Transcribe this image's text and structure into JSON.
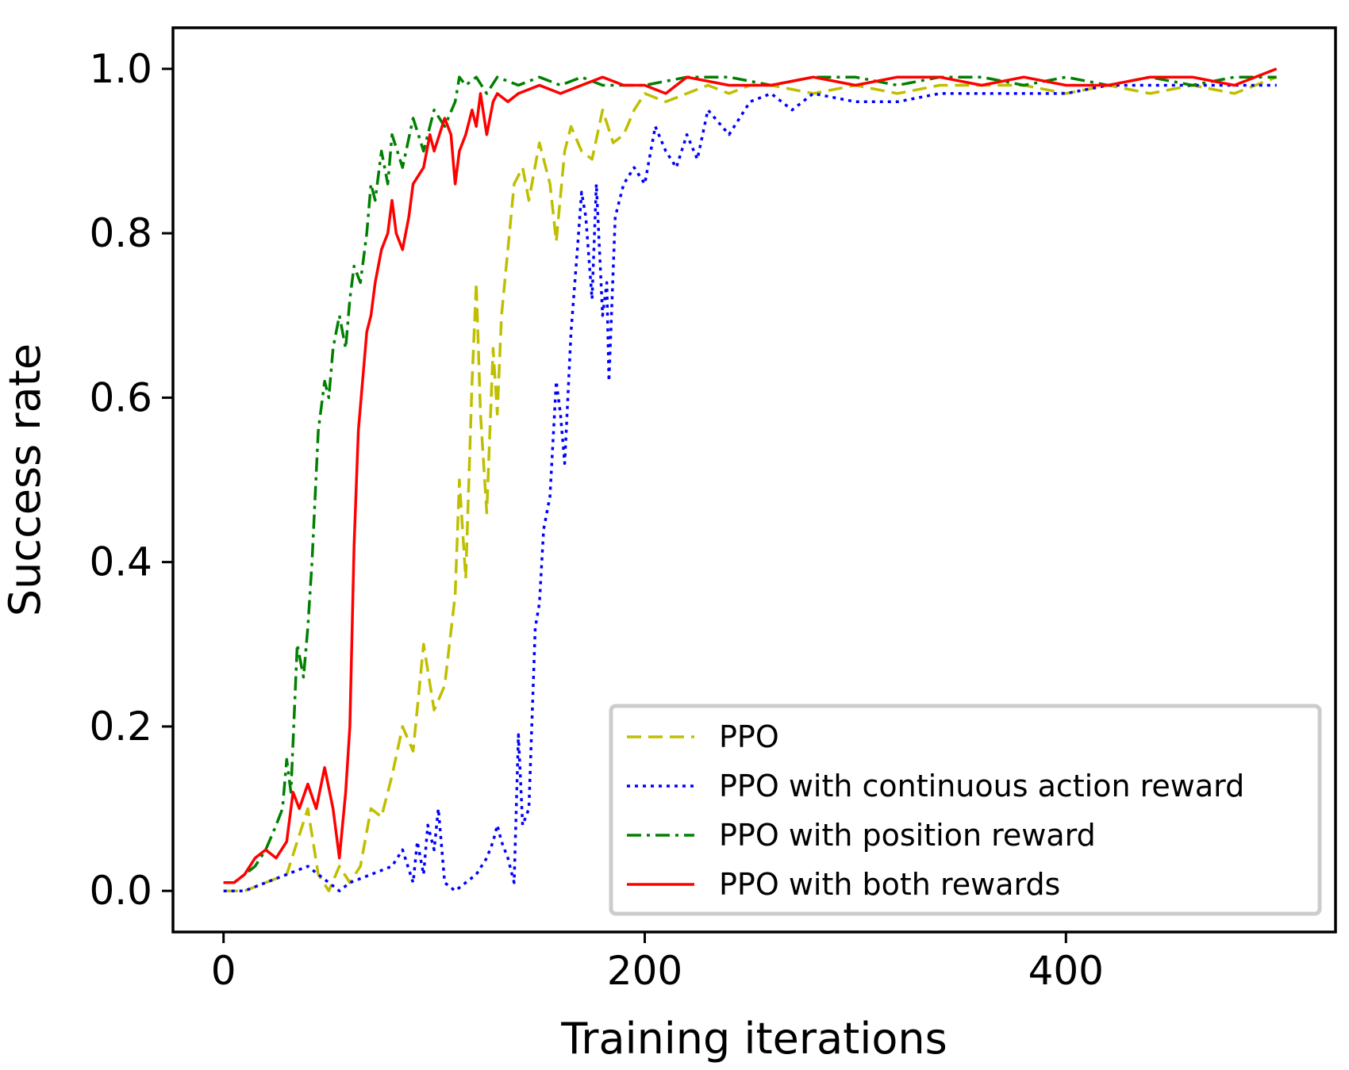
{
  "chart_data": {
    "type": "line",
    "title": "",
    "xlabel": "Training iterations",
    "ylabel": "Success rate",
    "xlim": [
      -24,
      528
    ],
    "ylim": [
      -0.05,
      1.05
    ],
    "xticks": [
      0,
      200,
      400
    ],
    "xtick_labels": [
      "0",
      "200",
      "400"
    ],
    "yticks": [
      0.0,
      0.2,
      0.4,
      0.6,
      0.8,
      1.0
    ],
    "ytick_labels": [
      "0.0",
      "0.2",
      "0.4",
      "0.6",
      "0.8",
      "1.0"
    ],
    "grid": false,
    "legend_position": "lower-right",
    "series": [
      {
        "name": "PPO",
        "color": "#bfbf00",
        "style": "dashed",
        "points": [
          [
            0,
            0.0
          ],
          [
            10,
            0.0
          ],
          [
            20,
            0.01
          ],
          [
            30,
            0.02
          ],
          [
            35,
            0.06
          ],
          [
            40,
            0.1
          ],
          [
            45,
            0.02
          ],
          [
            50,
            0.0
          ],
          [
            55,
            0.03
          ],
          [
            60,
            0.01
          ],
          [
            65,
            0.03
          ],
          [
            70,
            0.1
          ],
          [
            75,
            0.09
          ],
          [
            80,
            0.14
          ],
          [
            85,
            0.2
          ],
          [
            90,
            0.17
          ],
          [
            95,
            0.3
          ],
          [
            100,
            0.22
          ],
          [
            105,
            0.25
          ],
          [
            110,
            0.36
          ],
          [
            112,
            0.5
          ],
          [
            115,
            0.38
          ],
          [
            118,
            0.62
          ],
          [
            120,
            0.74
          ],
          [
            122,
            0.58
          ],
          [
            125,
            0.46
          ],
          [
            128,
            0.66
          ],
          [
            130,
            0.58
          ],
          [
            132,
            0.7
          ],
          [
            135,
            0.78
          ],
          [
            138,
            0.86
          ],
          [
            142,
            0.88
          ],
          [
            145,
            0.84
          ],
          [
            150,
            0.91
          ],
          [
            155,
            0.86
          ],
          [
            158,
            0.79
          ],
          [
            162,
            0.9
          ],
          [
            165,
            0.93
          ],
          [
            170,
            0.9
          ],
          [
            175,
            0.89
          ],
          [
            180,
            0.95
          ],
          [
            185,
            0.91
          ],
          [
            190,
            0.92
          ],
          [
            195,
            0.95
          ],
          [
            200,
            0.97
          ],
          [
            210,
            0.96
          ],
          [
            220,
            0.97
          ],
          [
            230,
            0.98
          ],
          [
            240,
            0.97
          ],
          [
            250,
            0.98
          ],
          [
            260,
            0.98
          ],
          [
            280,
            0.97
          ],
          [
            300,
            0.98
          ],
          [
            320,
            0.97
          ],
          [
            340,
            0.98
          ],
          [
            360,
            0.98
          ],
          [
            380,
            0.98
          ],
          [
            400,
            0.97
          ],
          [
            420,
            0.98
          ],
          [
            440,
            0.97
          ],
          [
            460,
            0.98
          ],
          [
            480,
            0.97
          ],
          [
            490,
            0.98
          ],
          [
            500,
            0.99
          ]
        ]
      },
      {
        "name": "PPO with continuous action reward",
        "color": "#0000ff",
        "style": "dotted",
        "points": [
          [
            0,
            0.0
          ],
          [
            10,
            0.0
          ],
          [
            20,
            0.01
          ],
          [
            30,
            0.02
          ],
          [
            40,
            0.03
          ],
          [
            45,
            0.02
          ],
          [
            50,
            0.01
          ],
          [
            55,
            0.0
          ],
          [
            60,
            0.01
          ],
          [
            70,
            0.02
          ],
          [
            80,
            0.03
          ],
          [
            85,
            0.05
          ],
          [
            90,
            0.01
          ],
          [
            92,
            0.06
          ],
          [
            95,
            0.02
          ],
          [
            97,
            0.08
          ],
          [
            100,
            0.05
          ],
          [
            102,
            0.1
          ],
          [
            105,
            0.01
          ],
          [
            110,
            0.0
          ],
          [
            115,
            0.01
          ],
          [
            120,
            0.02
          ],
          [
            125,
            0.04
          ],
          [
            128,
            0.06
          ],
          [
            130,
            0.08
          ],
          [
            132,
            0.06
          ],
          [
            135,
            0.04
          ],
          [
            138,
            0.01
          ],
          [
            140,
            0.19
          ],
          [
            142,
            0.08
          ],
          [
            145,
            0.1
          ],
          [
            148,
            0.32
          ],
          [
            150,
            0.35
          ],
          [
            152,
            0.44
          ],
          [
            155,
            0.48
          ],
          [
            158,
            0.62
          ],
          [
            160,
            0.58
          ],
          [
            162,
            0.52
          ],
          [
            165,
            0.68
          ],
          [
            168,
            0.78
          ],
          [
            170,
            0.85
          ],
          [
            172,
            0.82
          ],
          [
            175,
            0.72
          ],
          [
            177,
            0.86
          ],
          [
            180,
            0.7
          ],
          [
            182,
            0.74
          ],
          [
            183,
            0.62
          ],
          [
            186,
            0.82
          ],
          [
            190,
            0.86
          ],
          [
            195,
            0.88
          ],
          [
            200,
            0.86
          ],
          [
            205,
            0.93
          ],
          [
            210,
            0.9
          ],
          [
            215,
            0.88
          ],
          [
            220,
            0.92
          ],
          [
            225,
            0.89
          ],
          [
            230,
            0.95
          ],
          [
            240,
            0.92
          ],
          [
            250,
            0.96
          ],
          [
            260,
            0.97
          ],
          [
            270,
            0.95
          ],
          [
            280,
            0.97
          ],
          [
            300,
            0.96
          ],
          [
            320,
            0.96
          ],
          [
            340,
            0.97
          ],
          [
            360,
            0.97
          ],
          [
            380,
            0.97
          ],
          [
            400,
            0.97
          ],
          [
            420,
            0.98
          ],
          [
            440,
            0.98
          ],
          [
            460,
            0.98
          ],
          [
            480,
            0.98
          ],
          [
            500,
            0.98
          ]
        ]
      },
      {
        "name": "PPO with position reward",
        "color": "#008000",
        "style": "dashdot",
        "points": [
          [
            0,
            0.01
          ],
          [
            5,
            0.01
          ],
          [
            10,
            0.02
          ],
          [
            15,
            0.03
          ],
          [
            20,
            0.05
          ],
          [
            25,
            0.08
          ],
          [
            28,
            0.1
          ],
          [
            30,
            0.16
          ],
          [
            32,
            0.12
          ],
          [
            35,
            0.3
          ],
          [
            38,
            0.26
          ],
          [
            40,
            0.32
          ],
          [
            42,
            0.4
          ],
          [
            45,
            0.56
          ],
          [
            48,
            0.62
          ],
          [
            50,
            0.6
          ],
          [
            52,
            0.66
          ],
          [
            55,
            0.7
          ],
          [
            58,
            0.66
          ],
          [
            60,
            0.72
          ],
          [
            62,
            0.76
          ],
          [
            65,
            0.74
          ],
          [
            68,
            0.8
          ],
          [
            70,
            0.86
          ],
          [
            72,
            0.84
          ],
          [
            75,
            0.9
          ],
          [
            78,
            0.86
          ],
          [
            80,
            0.92
          ],
          [
            85,
            0.88
          ],
          [
            90,
            0.94
          ],
          [
            95,
            0.9
          ],
          [
            100,
            0.95
          ],
          [
            105,
            0.93
          ],
          [
            110,
            0.96
          ],
          [
            112,
            0.99
          ],
          [
            115,
            0.98
          ],
          [
            120,
            0.99
          ],
          [
            125,
            0.97
          ],
          [
            130,
            0.99
          ],
          [
            140,
            0.98
          ],
          [
            150,
            0.99
          ],
          [
            160,
            0.98
          ],
          [
            170,
            0.99
          ],
          [
            180,
            0.98
          ],
          [
            200,
            0.98
          ],
          [
            220,
            0.99
          ],
          [
            240,
            0.99
          ],
          [
            260,
            0.98
          ],
          [
            280,
            0.99
          ],
          [
            300,
            0.99
          ],
          [
            320,
            0.98
          ],
          [
            340,
            0.99
          ],
          [
            360,
            0.99
          ],
          [
            380,
            0.98
          ],
          [
            400,
            0.99
          ],
          [
            420,
            0.98
          ],
          [
            440,
            0.99
          ],
          [
            460,
            0.98
          ],
          [
            480,
            0.99
          ],
          [
            500,
            0.99
          ]
        ]
      },
      {
        "name": "PPO with both rewards",
        "color": "#ff0000",
        "style": "solid",
        "points": [
          [
            0,
            0.01
          ],
          [
            5,
            0.01
          ],
          [
            10,
            0.02
          ],
          [
            15,
            0.04
          ],
          [
            20,
            0.05
          ],
          [
            25,
            0.04
          ],
          [
            30,
            0.06
          ],
          [
            33,
            0.12
          ],
          [
            36,
            0.1
          ],
          [
            40,
            0.13
          ],
          [
            44,
            0.1
          ],
          [
            48,
            0.15
          ],
          [
            52,
            0.1
          ],
          [
            55,
            0.04
          ],
          [
            58,
            0.12
          ],
          [
            60,
            0.2
          ],
          [
            62,
            0.42
          ],
          [
            64,
            0.56
          ],
          [
            66,
            0.62
          ],
          [
            68,
            0.68
          ],
          [
            70,
            0.7
          ],
          [
            72,
            0.74
          ],
          [
            75,
            0.78
          ],
          [
            78,
            0.8
          ],
          [
            80,
            0.84
          ],
          [
            82,
            0.8
          ],
          [
            85,
            0.78
          ],
          [
            88,
            0.82
          ],
          [
            90,
            0.86
          ],
          [
            95,
            0.88
          ],
          [
            98,
            0.92
          ],
          [
            100,
            0.9
          ],
          [
            105,
            0.94
          ],
          [
            108,
            0.92
          ],
          [
            110,
            0.86
          ],
          [
            112,
            0.9
          ],
          [
            115,
            0.92
          ],
          [
            118,
            0.95
          ],
          [
            120,
            0.93
          ],
          [
            122,
            0.97
          ],
          [
            125,
            0.92
          ],
          [
            128,
            0.96
          ],
          [
            130,
            0.97
          ],
          [
            135,
            0.96
          ],
          [
            140,
            0.97
          ],
          [
            150,
            0.98
          ],
          [
            160,
            0.97
          ],
          [
            170,
            0.98
          ],
          [
            180,
            0.99
          ],
          [
            190,
            0.98
          ],
          [
            200,
            0.98
          ],
          [
            210,
            0.97
          ],
          [
            220,
            0.99
          ],
          [
            240,
            0.98
          ],
          [
            260,
            0.98
          ],
          [
            280,
            0.99
          ],
          [
            300,
            0.98
          ],
          [
            320,
            0.99
          ],
          [
            340,
            0.99
          ],
          [
            360,
            0.98
          ],
          [
            380,
            0.99
          ],
          [
            400,
            0.98
          ],
          [
            420,
            0.98
          ],
          [
            440,
            0.99
          ],
          [
            460,
            0.99
          ],
          [
            480,
            0.98
          ],
          [
            500,
            1.0
          ]
        ]
      }
    ]
  }
}
